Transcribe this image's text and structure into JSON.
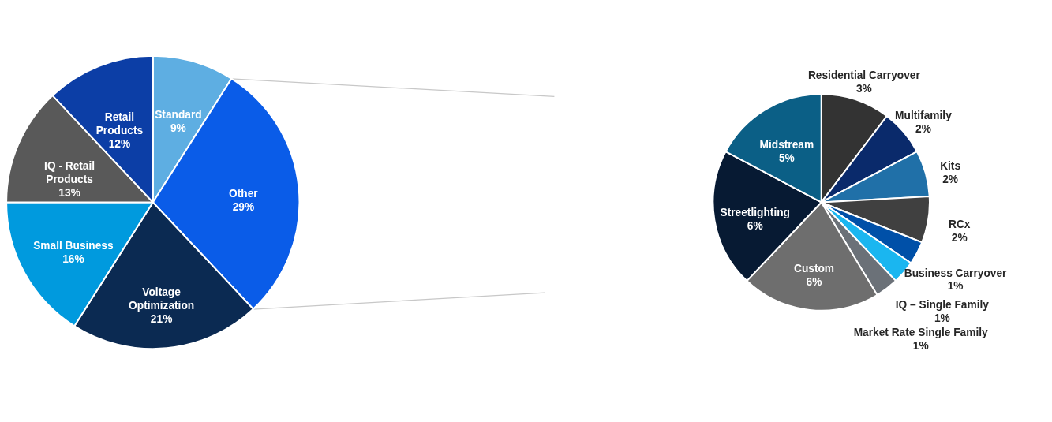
{
  "chart_data": [
    {
      "type": "pie",
      "categories": [
        "Standard",
        "Other",
        "Voltage Optimization",
        "Small Business",
        "IQ - Retail Products",
        "Retail Products"
      ],
      "values": [
        9,
        29,
        21,
        16,
        13,
        12
      ],
      "colors": [
        "#5eaee2",
        "#0a5ce8",
        "#0b2a52",
        "#009ade",
        "#595959",
        "#0c3ea6"
      ],
      "value_labels": [
        "9%",
        "29%",
        "21%",
        "16%",
        "13%",
        "12%"
      ]
    },
    {
      "type": "pie",
      "categories": [
        "Residential Carryover",
        "Multifamily",
        "Kits",
        "RCx",
        "Business Carryover",
        "IQ – Single Family",
        "Market Rate Single Family",
        "Custom",
        "Streetlighting",
        "Midstream"
      ],
      "values": [
        3,
        2,
        2,
        2,
        1,
        1,
        1,
        6,
        6,
        5
      ],
      "colors": [
        "#333333",
        "#0a2a6b",
        "#2070a8",
        "#404040",
        "#0050a8",
        "#1ab6f0",
        "#6b7178",
        "#6e6e6e",
        "#071a33",
        "#0b5f86"
      ],
      "value_labels": [
        "3%",
        "2%",
        "2%",
        "2%",
        "1%",
        "1%",
        "1%",
        "6%",
        "6%",
        "5%"
      ]
    }
  ]
}
